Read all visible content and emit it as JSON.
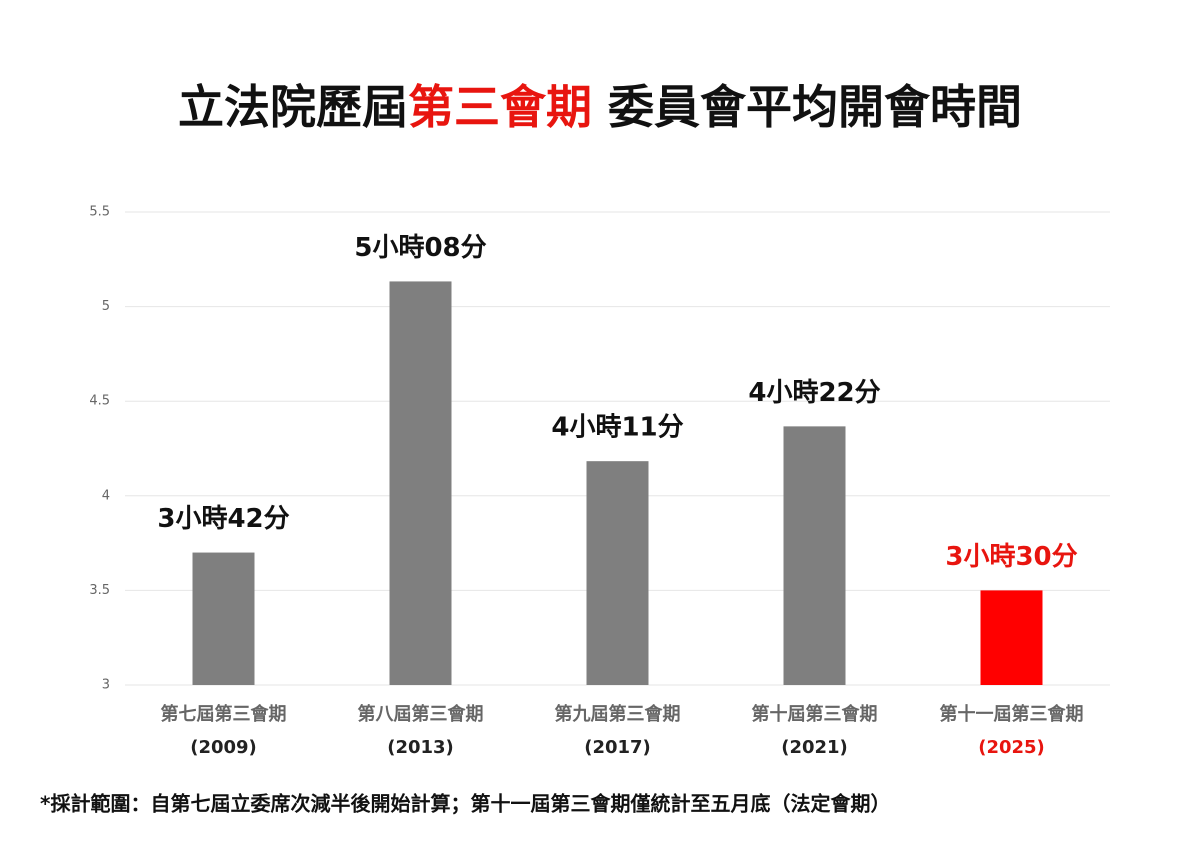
{
  "chart_data": {
    "type": "bar",
    "title": [
      {
        "text": "立法院歷屆",
        "color": "#111111"
      },
      {
        "text": "第三會期",
        "color": "#e8150f"
      },
      {
        "text": " 委員會平均開會時間",
        "color": "#111111"
      }
    ],
    "categories": [
      "第七屆第三會期",
      "第八屆第三會期",
      "第九屆第三會期",
      "第十屆第三會期",
      "第十一屆第三會期"
    ],
    "years": [
      "(2009)",
      "(2013)",
      "(2017)",
      "(2021)",
      "(2025)"
    ],
    "year_colors": [
      "#222222",
      "#222222",
      "#222222",
      "#222222",
      "#e8150f"
    ],
    "values": [
      3.7,
      5.133,
      4.183,
      4.367,
      3.5
    ],
    "value_labels": [
      "3小時42分",
      "5小時08分",
      "4小時11分",
      "4小時22分",
      "3小時30分"
    ],
    "value_label_colors": [
      "#111111",
      "#111111",
      "#111111",
      "#111111",
      "#e8150f"
    ],
    "colors": [
      "#7f7f7f",
      "#7f7f7f",
      "#7f7f7f",
      "#7f7f7f",
      "#ff0000"
    ],
    "ylim": [
      3,
      5.5
    ],
    "yticks": [
      3,
      3.5,
      4,
      4.5,
      5,
      5.5
    ],
    "grid": true,
    "footnote": "*採計範圍：自第七屆立委席次減半後開始計算；第十一屆第三會期僅統計至五月底（法定會期）"
  }
}
